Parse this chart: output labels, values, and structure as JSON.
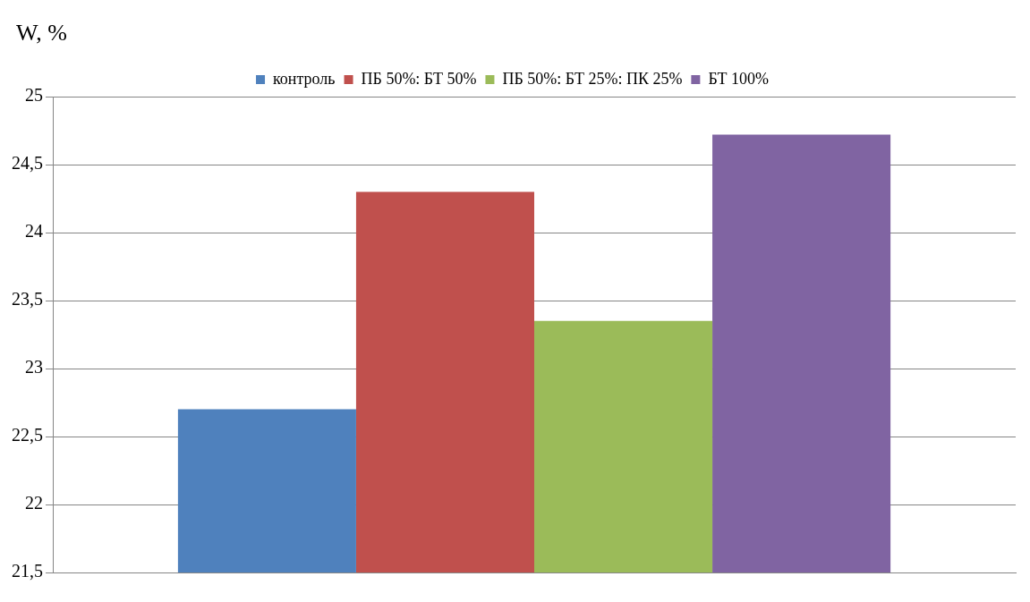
{
  "chart_data": {
    "type": "bar",
    "ylabel": "W, %",
    "categories": [
      null
    ],
    "series": [
      {
        "name": "контроль",
        "color": "#4f81bd",
        "values": [
          22.7
        ]
      },
      {
        "name": "ПБ 50%: БТ 50%",
        "color": "#c0504d",
        "values": [
          24.3
        ]
      },
      {
        "name": "ПБ 50%: БТ 25%: ПК 25%",
        "color": "#9bbb59",
        "values": [
          23.35
        ]
      },
      {
        "name": "БТ 100%",
        "color": "#8064a2",
        "values": [
          24.72
        ]
      }
    ],
    "ylim": [
      21.5,
      25
    ],
    "yticks": [
      {
        "value": 21.5,
        "label": "21,5"
      },
      {
        "value": 22,
        "label": "22"
      },
      {
        "value": 22.5,
        "label": "22,5"
      },
      {
        "value": 23,
        "label": "23"
      },
      {
        "value": 23.5,
        "label": "23,5"
      },
      {
        "value": 24,
        "label": "24"
      },
      {
        "value": 24.5,
        "label": "24,5"
      },
      {
        "value": 25,
        "label": "25"
      }
    ],
    "grid": "y",
    "legend": "top"
  }
}
